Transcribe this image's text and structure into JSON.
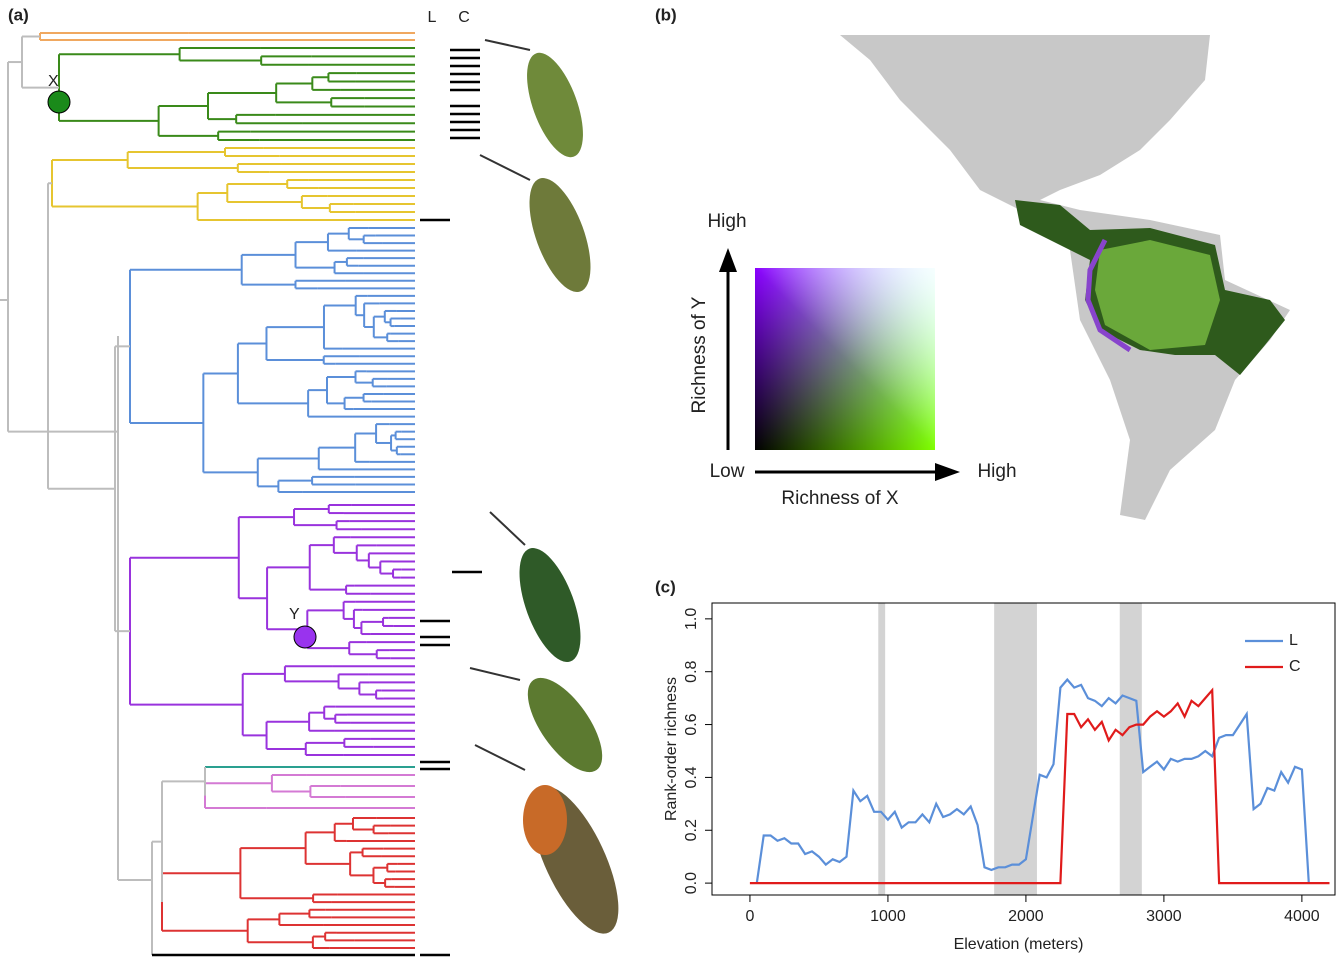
{
  "panels": {
    "a": {
      "label": "(a)",
      "columns": [
        "L",
        "C"
      ],
      "nodes": [
        "X",
        "Y"
      ]
    },
    "b": {
      "label": "(b)",
      "legend": {
        "y_high": "High",
        "x_low": "Low",
        "x_high": "High",
        "y_label": "Richness of Y",
        "x_label": "Richness of X"
      }
    }
  },
  "chart_data": {
    "type": "line",
    "panel_label": "(c)",
    "xlabel": "Elevation (meters)",
    "ylabel": "Rank-order richness",
    "x": [
      0,
      50,
      100,
      150,
      200,
      250,
      300,
      350,
      400,
      450,
      500,
      550,
      600,
      650,
      700,
      750,
      800,
      850,
      900,
      950,
      1000,
      1050,
      1100,
      1150,
      1200,
      1250,
      1300,
      1350,
      1400,
      1450,
      1500,
      1550,
      1600,
      1650,
      1700,
      1750,
      1800,
      1850,
      1900,
      1950,
      2000,
      2050,
      2100,
      2150,
      2200,
      2250,
      2300,
      2350,
      2400,
      2450,
      2500,
      2550,
      2600,
      2650,
      2700,
      2750,
      2800,
      2850,
      2900,
      2950,
      3000,
      3050,
      3100,
      3150,
      3200,
      3250,
      3300,
      3350,
      3400,
      3450,
      3500,
      3550,
      3600,
      3650,
      3700,
      3750,
      3800,
      3850,
      3900,
      3950,
      4000,
      4050,
      4100,
      4150,
      4200
    ],
    "series": [
      {
        "name": "L",
        "color": "#5b8fd9",
        "values": [
          null,
          0.0,
          0.18,
          0.18,
          0.16,
          0.17,
          0.15,
          0.15,
          0.11,
          0.12,
          0.1,
          0.07,
          0.09,
          0.08,
          0.1,
          0.35,
          0.31,
          0.33,
          0.27,
          0.27,
          0.24,
          0.27,
          0.21,
          0.23,
          0.23,
          0.26,
          0.23,
          0.3,
          0.25,
          0.26,
          0.28,
          0.26,
          0.29,
          0.22,
          0.06,
          0.05,
          0.06,
          0.06,
          0.07,
          0.07,
          0.09,
          0.25,
          0.41,
          0.4,
          0.45,
          0.74,
          0.77,
          0.74,
          0.75,
          0.7,
          0.69,
          0.67,
          0.7,
          0.68,
          0.71,
          0.7,
          0.69,
          0.42,
          0.44,
          0.46,
          0.43,
          0.47,
          0.46,
          0.47,
          0.47,
          0.48,
          0.5,
          0.48,
          0.55,
          0.56,
          0.56,
          0.6,
          0.64,
          0.28,
          0.3,
          0.36,
          0.35,
          0.42,
          0.38,
          0.44,
          0.43,
          0.0,
          null,
          null,
          null
        ]
      },
      {
        "name": "C",
        "color": "#e01b1b",
        "values": [
          0,
          0,
          0,
          0,
          0,
          0,
          0,
          0,
          0,
          0,
          0,
          0,
          0,
          0,
          0,
          0,
          0,
          0,
          0,
          0,
          0,
          0,
          0,
          0,
          0,
          0,
          0,
          0,
          0,
          0,
          0,
          0,
          0,
          0,
          0,
          0,
          0,
          0,
          0,
          0,
          0,
          0,
          0,
          0,
          0,
          0,
          0.64,
          0.64,
          0.59,
          0.62,
          0.58,
          0.61,
          0.54,
          0.58,
          0.56,
          0.59,
          0.6,
          0.6,
          0.63,
          0.65,
          0.63,
          0.65,
          0.68,
          0.63,
          0.69,
          0.67,
          0.7,
          0.73,
          0,
          0,
          0,
          0,
          0,
          0,
          0,
          0,
          0,
          0,
          0,
          0,
          0,
          0,
          0,
          0,
          0
        ]
      }
    ],
    "shaded_ranges": [
      [
        930,
        980
      ],
      [
        1770,
        2080
      ],
      [
        2680,
        2840
      ]
    ],
    "shade_color": "#d3d3d3",
    "xlim": [
      -275,
      4240
    ],
    "ylim": [
      -0.045,
      1.06
    ],
    "xticks": [
      0,
      1000,
      2000,
      3000,
      4000
    ],
    "yticks": [
      {
        "value": 0,
        "label": "0.0"
      },
      0.2,
      0.4,
      0.6,
      0.8,
      {
        "value": 1,
        "label": "1.0"
      }
    ],
    "legend": "upper right"
  }
}
